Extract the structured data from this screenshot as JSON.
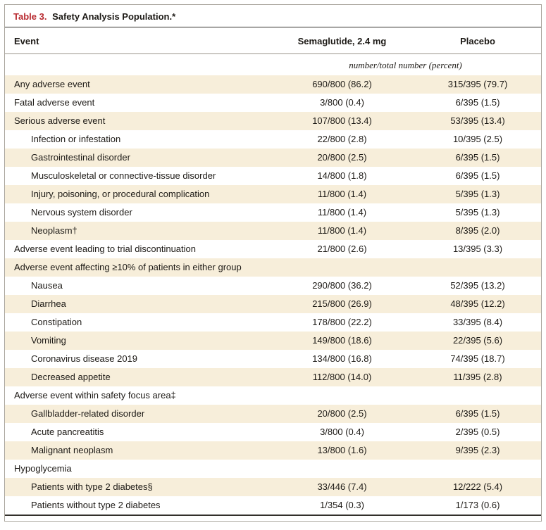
{
  "table": {
    "label": "Table 3.",
    "title": "Safety Analysis Population.*",
    "columns": [
      "Event",
      "Semaglutide, 2.4 mg",
      "Placebo"
    ],
    "units_note": "number/total number (percent)",
    "rows": [
      {
        "label": "Any adverse event",
        "indent": 0,
        "semaglutide": "690/800 (86.2)",
        "placebo": "315/395 (79.7)"
      },
      {
        "label": "Fatal adverse event",
        "indent": 0,
        "semaglutide": "3/800 (0.4)",
        "placebo": "6/395 (1.5)"
      },
      {
        "label": "Serious adverse event",
        "indent": 0,
        "semaglutide": "107/800 (13.4)",
        "placebo": "53/395 (13.4)"
      },
      {
        "label": "Infection or infestation",
        "indent": 1,
        "semaglutide": "22/800 (2.8)",
        "placebo": "10/395 (2.5)"
      },
      {
        "label": "Gastrointestinal disorder",
        "indent": 1,
        "semaglutide": "20/800 (2.5)",
        "placebo": "6/395 (1.5)"
      },
      {
        "label": "Musculoskeletal or connective-tissue disorder",
        "indent": 1,
        "semaglutide": "14/800 (1.8)",
        "placebo": "6/395 (1.5)"
      },
      {
        "label": "Injury, poisoning, or procedural complication",
        "indent": 1,
        "semaglutide": "11/800 (1.4)",
        "placebo": "5/395 (1.3)"
      },
      {
        "label": "Nervous system disorder",
        "indent": 1,
        "semaglutide": "11/800 (1.4)",
        "placebo": "5/395 (1.3)"
      },
      {
        "label": "Neoplasm†",
        "indent": 1,
        "semaglutide": "11/800 (1.4)",
        "placebo": "8/395 (2.0)"
      },
      {
        "label": "Adverse event leading to trial discontinuation",
        "indent": 0,
        "semaglutide": "21/800 (2.6)",
        "placebo": "13/395 (3.3)"
      },
      {
        "label": "Adverse event affecting ≥10% of patients in either group",
        "indent": 0,
        "semaglutide": "",
        "placebo": ""
      },
      {
        "label": "Nausea",
        "indent": 1,
        "semaglutide": "290/800 (36.2)",
        "placebo": "52/395 (13.2)"
      },
      {
        "label": "Diarrhea",
        "indent": 1,
        "semaglutide": "215/800 (26.9)",
        "placebo": "48/395 (12.2)"
      },
      {
        "label": "Constipation",
        "indent": 1,
        "semaglutide": "178/800 (22.2)",
        "placebo": "33/395 (8.4)"
      },
      {
        "label": "Vomiting",
        "indent": 1,
        "semaglutide": "149/800 (18.6)",
        "placebo": "22/395 (5.6)"
      },
      {
        "label": "Coronavirus disease 2019",
        "indent": 1,
        "semaglutide": "134/800 (16.8)",
        "placebo": "74/395 (18.7)"
      },
      {
        "label": "Decreased appetite",
        "indent": 1,
        "semaglutide": "112/800 (14.0)",
        "placebo": "11/395 (2.8)"
      },
      {
        "label": "Adverse event within safety focus area‡",
        "indent": 0,
        "semaglutide": "",
        "placebo": ""
      },
      {
        "label": "Gallbladder-related disorder",
        "indent": 1,
        "semaglutide": "20/800 (2.5)",
        "placebo": "6/395 (1.5)"
      },
      {
        "label": "Acute pancreatitis",
        "indent": 1,
        "semaglutide": "3/800 (0.4)",
        "placebo": "2/395 (0.5)"
      },
      {
        "label": "Malignant neoplasm",
        "indent": 1,
        "semaglutide": "13/800 (1.6)",
        "placebo": "9/395 (2.3)"
      },
      {
        "label": "Hypoglycemia",
        "indent": 0,
        "semaglutide": "",
        "placebo": ""
      },
      {
        "label": "Patients with type 2 diabetes§",
        "indent": 1,
        "semaglutide": "33/446 (7.4)",
        "placebo": "12/222 (5.4)"
      },
      {
        "label": "Patients without type 2 diabetes",
        "indent": 1,
        "semaglutide": "1/354 (0.3)",
        "placebo": "1/173 (0.6)"
      }
    ],
    "colors": {
      "title_red": "#b8292f",
      "row_shade": "#f7eeda",
      "rule_dark": "#33302b",
      "frame_border": "#aaa69e"
    }
  }
}
